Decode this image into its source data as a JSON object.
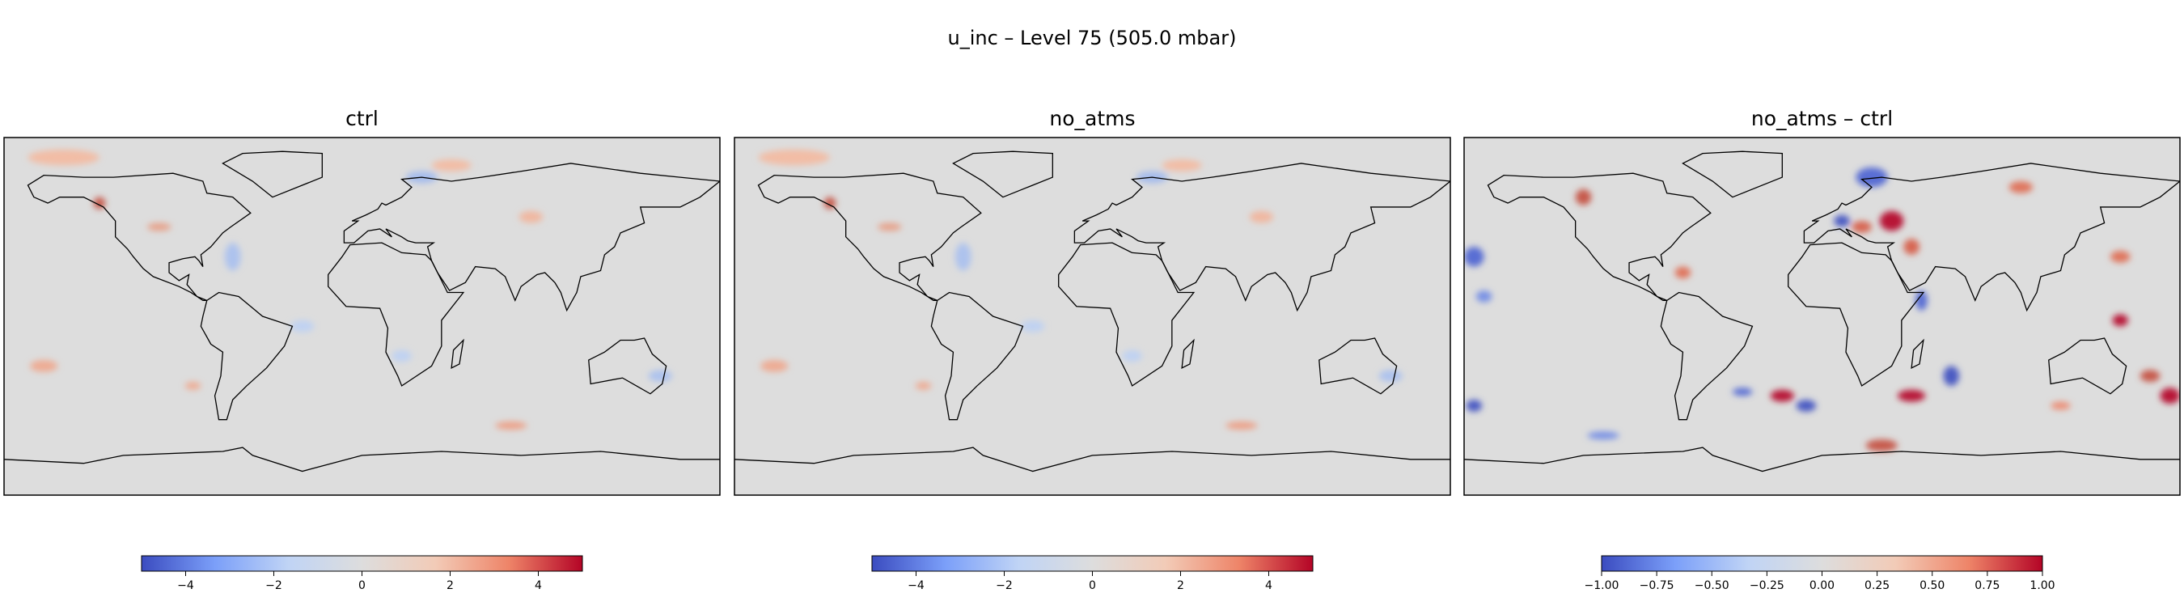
{
  "title": "u_inc – Level 75 (505.0 mbar)",
  "panels": [
    {
      "title": "ctrl",
      "colorbar": {
        "lim": [
          -5,
          5
        ],
        "colors": [
          "#3b4cc0",
          "#7b9ff9",
          "#c0d4f5",
          "#dddddd",
          "#f2cbb7",
          "#ee8468",
          "#b40426"
        ],
        "ticks": [
          {
            "value": -4,
            "label": "−4"
          },
          {
            "value": -2,
            "label": "−2"
          },
          0,
          2,
          4
        ]
      }
    },
    {
      "title": "no_atms",
      "colorbar": {
        "lim": [
          -5,
          5
        ],
        "colors": [
          "#3b4cc0",
          "#7b9ff9",
          "#c0d4f5",
          "#dddddd",
          "#f2cbb7",
          "#ee8468",
          "#b40426"
        ],
        "ticks": [
          {
            "value": -4,
            "label": "−4"
          },
          {
            "value": -2,
            "label": "−2"
          },
          0,
          2,
          4
        ]
      }
    },
    {
      "title": "no_atms – ctrl",
      "colorbar": {
        "lim": [
          -1,
          1
        ],
        "colors": [
          "#3b4cc0",
          "#7b9ff9",
          "#c0d4f5",
          "#dddddd",
          "#f2cbb7",
          "#ee8468",
          "#b40426"
        ],
        "ticks": [
          {
            "value": -1,
            "label": "−1.00"
          },
          {
            "value": -0.75,
            "label": "−0.75"
          },
          {
            "value": -0.5,
            "label": "−0.50"
          },
          {
            "value": -0.25,
            "label": "−0.25"
          },
          {
            "value": 0,
            "label": "0.00"
          },
          0.25,
          {
            "value": 0.5,
            "label": "0.50"
          },
          0.75,
          {
            "value": 1,
            "label": "1.00"
          }
        ]
      }
    }
  ]
}
